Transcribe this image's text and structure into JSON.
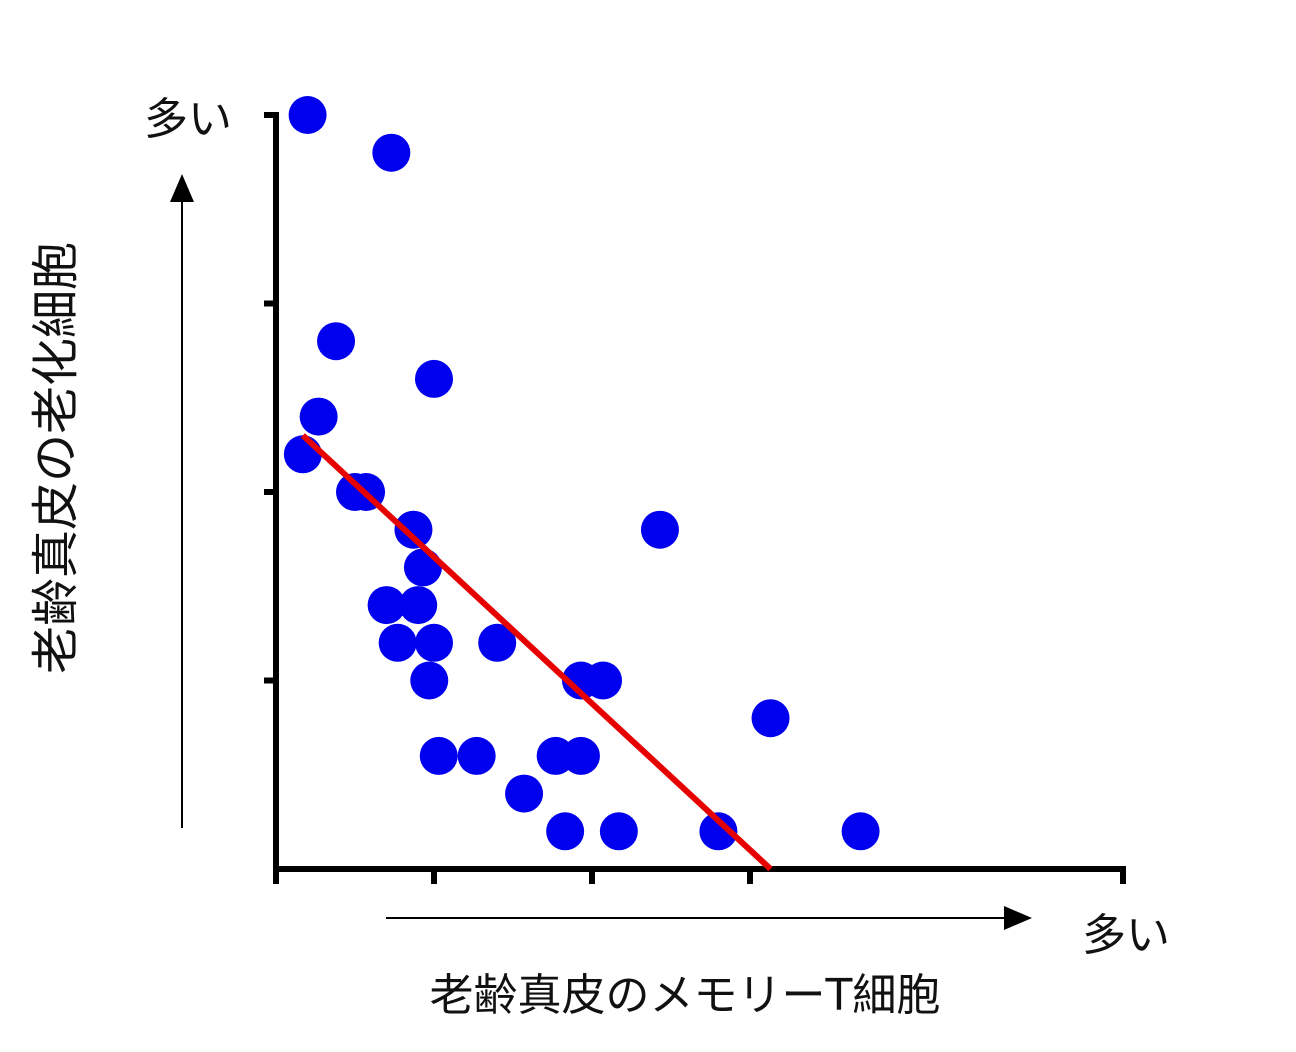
{
  "chart_data": {
    "type": "scatter",
    "xlabel": "老齢真皮のメモリーT細胞",
    "ylabel": "老齢真皮の老化細胞",
    "x_high_label": "多い",
    "y_high_label": "多い",
    "xlim": [
      0,
      4
    ],
    "ylim": [
      0,
      4
    ],
    "grid": false,
    "colors": {
      "points": "#0000ee",
      "trend": "#e60000",
      "axes": "#000000"
    },
    "points": [
      {
        "x": 0.2,
        "y": 4.0
      },
      {
        "x": 0.73,
        "y": 3.8
      },
      {
        "x": 0.38,
        "y": 2.8
      },
      {
        "x": 1.0,
        "y": 2.6
      },
      {
        "x": 0.27,
        "y": 2.4
      },
      {
        "x": 0.17,
        "y": 2.2
      },
      {
        "x": 0.5,
        "y": 2.0
      },
      {
        "x": 0.57,
        "y": 2.0
      },
      {
        "x": 0.87,
        "y": 1.8
      },
      {
        "x": 2.43,
        "y": 1.8
      },
      {
        "x": 0.93,
        "y": 1.6
      },
      {
        "x": 0.7,
        "y": 1.4
      },
      {
        "x": 0.9,
        "y": 1.4
      },
      {
        "x": 0.77,
        "y": 1.2
      },
      {
        "x": 1.0,
        "y": 1.2
      },
      {
        "x": 1.4,
        "y": 1.2
      },
      {
        "x": 0.97,
        "y": 1.0
      },
      {
        "x": 1.93,
        "y": 1.0
      },
      {
        "x": 2.07,
        "y": 1.0
      },
      {
        "x": 3.13,
        "y": 0.8
      },
      {
        "x": 1.03,
        "y": 0.6
      },
      {
        "x": 1.27,
        "y": 0.6
      },
      {
        "x": 1.77,
        "y": 0.6
      },
      {
        "x": 1.93,
        "y": 0.6
      },
      {
        "x": 1.57,
        "y": 0.4
      },
      {
        "x": 1.83,
        "y": 0.2
      },
      {
        "x": 2.17,
        "y": 0.2
      },
      {
        "x": 2.8,
        "y": 0.2
      },
      {
        "x": 3.7,
        "y": 0.2
      }
    ],
    "trendline": {
      "x_start": 0.17,
      "y_start": 2.3,
      "x_end": 3.13,
      "y_end": 0.0
    }
  }
}
